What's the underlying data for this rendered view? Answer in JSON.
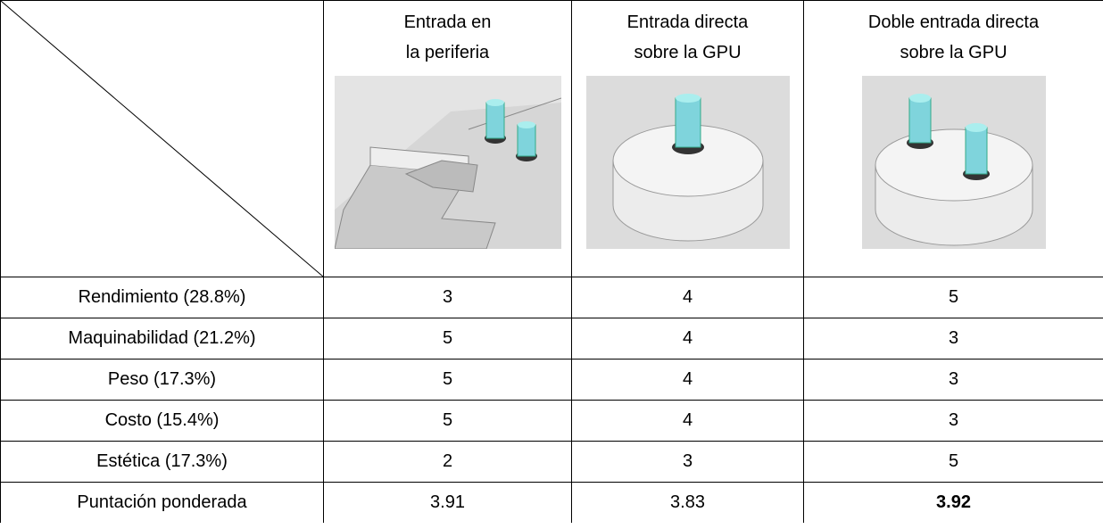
{
  "table": {
    "header": [
      [
        "Entrada en",
        "la periferia"
      ],
      [
        "Entrada directa",
        "sobre la GPU"
      ],
      [
        "Doble entrada directa",
        "sobre la GPU"
      ]
    ],
    "rows": [
      [
        "Rendimiento (28.8%)",
        3,
        4,
        5
      ],
      [
        "Maquinabilidad (21.2%)",
        5,
        4,
        3
      ],
      [
        "Peso (17.3%)",
        5,
        4,
        3
      ],
      [
        "Costo (15.4%)",
        5,
        4,
        3
      ],
      [
        "Estética (17.3%)",
        2,
        3,
        5
      ],
      [
        "Puntación ponderada",
        3.91,
        3.83,
        3.92
      ]
    ]
  }
}
